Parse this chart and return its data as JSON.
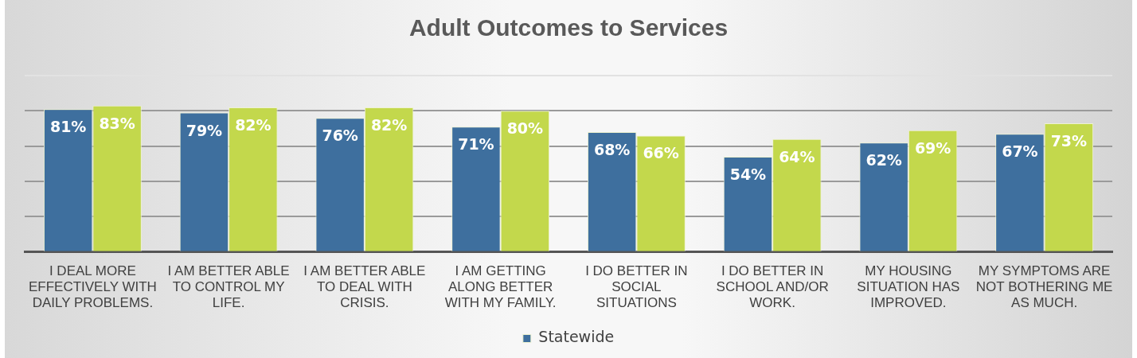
{
  "chart_data": {
    "type": "bar",
    "title": "Adult Outcomes to Services",
    "categories": [
      "I DEAL MORE EFFECTIVELY WITH DAILY PROBLEMS.",
      "I AM BETTER ABLE TO CONTROL MY LIFE.",
      "I AM BETTER ABLE TO DEAL WITH CRISIS.",
      "I AM GETTING ALONG BETTER WITH MY FAMILY.",
      "I DO BETTER IN SOCIAL SITUATIONS",
      "I DO BETTER IN SCHOOL AND/OR WORK.",
      "MY HOUSING SITUATION HAS IMPROVED.",
      "MY SYMPTOMS ARE NOT BOTHERING ME AS MUCH."
    ],
    "series": [
      {
        "name": "Statewide",
        "color": "#3e6f9e",
        "values": [
          81,
          79,
          76,
          71,
          68,
          54,
          62,
          67
        ],
        "value_labels": [
          "81%",
          "79%",
          "76%",
          "71%",
          "68%",
          "54%",
          "62%",
          "67%"
        ]
      },
      {
        "color": "#c3d84c",
        "values": [
          83,
          82,
          82,
          80,
          66,
          64,
          69,
          73
        ],
        "value_labels": [
          "83%",
          "82%",
          "82%",
          "80%",
          "66%",
          "64%",
          "69%",
          "73%"
        ]
      }
    ],
    "ylim": [
      0,
      100
    ],
    "yticks": [
      {
        "value": 0,
        "label": null
      },
      {
        "value": 20,
        "label": null
      },
      {
        "value": 40,
        "label": null
      },
      {
        "value": 60,
        "label": null
      },
      {
        "value": 80,
        "label": null
      },
      {
        "value": 100,
        "label": null
      }
    ],
    "tick_labels": "x",
    "grid": "y",
    "legend": "bottom"
  }
}
